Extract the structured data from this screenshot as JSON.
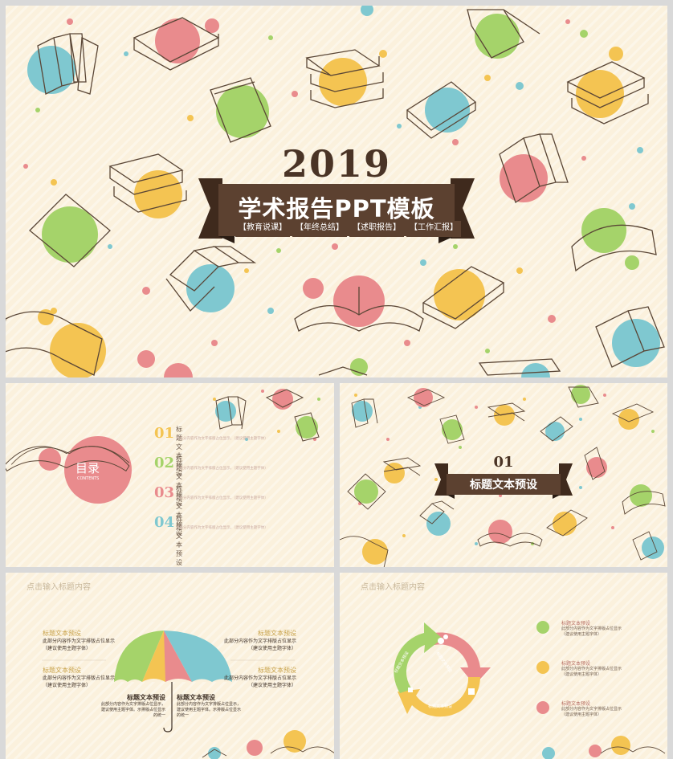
{
  "colors": {
    "pink": "#e98b8d",
    "yellow": "#f4c452",
    "blue": "#7fc8d0",
    "green": "#a5d36a",
    "brown": "#4a3426",
    "bg": "#fbf1dd"
  },
  "cover": {
    "year": "2019",
    "title": "学术报告PPT模板",
    "tags": [
      "【教育说课】",
      "【年终总结】",
      "【述职报告】",
      "【工作汇报】"
    ]
  },
  "toc": {
    "title": "目录",
    "subtitle": "CONTENTS",
    "items": [
      {
        "num": "01",
        "label": "标题文本预设",
        "sub": "点击分内容作为文字排版占位显示，（建议使用主题字体）",
        "color": "#f4c452"
      },
      {
        "num": "02",
        "label": "标题文本预设",
        "sub": "点击分内容作为文字排版占位显示，（建议使用主题字体）",
        "color": "#a5d36a"
      },
      {
        "num": "03",
        "label": "标题文本预设",
        "sub": "点击分内容作为文字排版占位显示，（建议使用主题字体）",
        "color": "#e98b8d"
      },
      {
        "num": "04",
        "label": "标题文本预设",
        "sub": "点击分内容作为文字排版占位显示，（建议使用主题字体）",
        "color": "#7fc8d0"
      }
    ]
  },
  "section": {
    "num": "01",
    "title": "标题文本预设"
  },
  "umbrella": {
    "caption": "点击输入标题内容",
    "left": [
      {
        "title": "标题文本预设",
        "desc": [
          "此部分内容作为文字排版占位显示",
          "（建议使用主题字体）"
        ]
      },
      {
        "title": "标题文本预设",
        "desc": [
          "此部分内容作为文字排版占位显示",
          "（建议使用主题字体）"
        ]
      }
    ],
    "right": [
      {
        "title": "标题文本预设",
        "desc": [
          "此部分内容作为文字排版占位显示",
          "（建议使用主题字体）"
        ]
      },
      {
        "title": "标题文本预设",
        "desc": [
          "此部分内容作为文字排版占位显示",
          "（建议使用主题字体）"
        ]
      }
    ],
    "bottom": [
      {
        "title": "标题文本预设",
        "desc": [
          "此部分内容作为文字排版占位显示，",
          "建议使用主题字体。示排版占位显示",
          "的统一"
        ]
      },
      {
        "title": "标题文本预设",
        "desc": [
          "此部分内容作为文字排版占位显示，",
          "建议使用主题字体。示排版占位显示",
          "的统一"
        ]
      }
    ]
  },
  "cycle": {
    "caption": "点击输入标题内容",
    "arcs": [
      "标题文本预设",
      "标题文本预设",
      "标题文本预设"
    ],
    "items": [
      {
        "title": "标题文本预设",
        "desc": [
          "此部分内容作为文字排版占位显示",
          "（建议使用主题字体）"
        ],
        "color": "#a5d36a"
      },
      {
        "title": "标题文本预设",
        "desc": [
          "此部分内容作为文字排版占位显示",
          "（建议使用主题字体）"
        ],
        "color": "#f4c452"
      },
      {
        "title": "标题文本预设",
        "desc": [
          "此部分内容作为文字排版占位显示",
          "（建议使用主题字体）"
        ],
        "color": "#e98b8d"
      }
    ]
  }
}
